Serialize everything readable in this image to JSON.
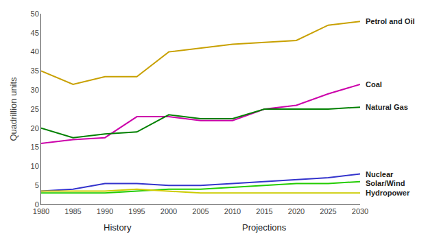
{
  "chart_data": {
    "type": "line",
    "ylabel": "Quadrillion units",
    "x": [
      1980,
      1985,
      1990,
      1995,
      2000,
      2005,
      2010,
      2015,
      2020,
      2025,
      2030
    ],
    "series": [
      {
        "name": "Petrol and Oil",
        "color": "#c8a000",
        "values": [
          35,
          31.5,
          33.5,
          33.5,
          40,
          41,
          42,
          42.5,
          43,
          47,
          48
        ]
      },
      {
        "name": "Coal",
        "color": "#cc00aa",
        "values": [
          16,
          17,
          17.5,
          23,
          23,
          22,
          22,
          25,
          26,
          29,
          31.5
        ]
      },
      {
        "name": "Natural Gas",
        "color": "#008000",
        "values": [
          20,
          17.5,
          18.5,
          19,
          23.5,
          22.5,
          22.5,
          25,
          25,
          25,
          25.5
        ]
      },
      {
        "name": "Nuclear",
        "color": "#3333cc",
        "values": [
          3.5,
          4,
          5.5,
          5.5,
          5,
          5,
          5.5,
          6,
          6.5,
          7,
          8
        ]
      },
      {
        "name": "Solar/Wind",
        "color": "#22cc00",
        "values": [
          3,
          3,
          3,
          3.5,
          4,
          4,
          4.5,
          5,
          5.5,
          5.5,
          6
        ]
      },
      {
        "name": "Hydropower",
        "color": "#cccc00",
        "values": [
          3.5,
          3.5,
          3.5,
          4,
          3.5,
          3,
          3,
          3,
          3,
          3,
          3
        ]
      }
    ],
    "annotations": [
      {
        "text": "History",
        "x": 1992
      },
      {
        "text": "Projections",
        "x": 2015
      }
    ],
    "xlim": [
      1980,
      2030
    ],
    "xticks": [
      1980,
      1985,
      1990,
      1995,
      2000,
      2005,
      2010,
      2015,
      2020,
      2025,
      2030
    ],
    "ylim": [
      0,
      50
    ],
    "yticks": [
      0,
      5,
      10,
      15,
      20,
      25,
      30,
      35,
      40,
      45,
      50
    ],
    "grid": false
  }
}
